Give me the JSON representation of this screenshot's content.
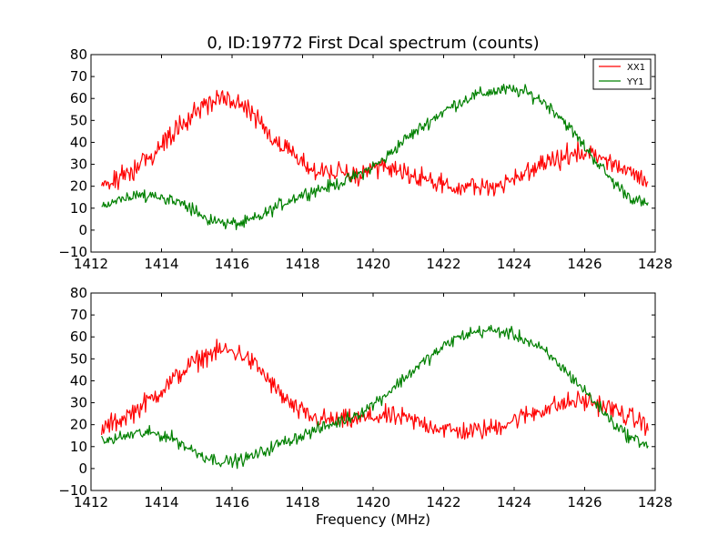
{
  "chart_data": [
    {
      "type": "line",
      "title": "0, ID:19772 First Dcal spectrum (counts)",
      "xlabel": "",
      "ylabel": "",
      "xlim": [
        1412,
        1428
      ],
      "ylim": [
        -10,
        80
      ],
      "xticks": [
        "1412",
        "1414",
        "1416",
        "1418",
        "1420",
        "1422",
        "1424",
        "1426",
        "1428"
      ],
      "yticks": [
        "−10",
        "0",
        "10",
        "20",
        "30",
        "40",
        "50",
        "60",
        "70",
        "80"
      ],
      "legend": {
        "placement": "top-right",
        "entries": [
          "XX1",
          "YY1"
        ]
      },
      "grid": false,
      "series": [
        {
          "name": "XX1",
          "color": "#ff0000",
          "noise": 3.5,
          "x": [
            1412.3,
            1412.8,
            1413.3,
            1413.8,
            1414.3,
            1414.8,
            1415.3,
            1415.8,
            1416.3,
            1416.8,
            1417.3,
            1417.8,
            1418.3,
            1418.8,
            1419.3,
            1419.8,
            1420.3,
            1420.8,
            1421.3,
            1421.8,
            1422.3,
            1422.8,
            1423.3,
            1423.8,
            1424.3,
            1424.8,
            1425.3,
            1425.8,
            1426.3,
            1426.8,
            1427.3,
            1427.8
          ],
          "y": [
            20,
            24,
            29,
            36,
            44,
            52,
            58,
            60,
            57,
            50,
            40,
            32,
            28,
            26,
            25,
            26,
            28,
            27,
            24,
            21,
            19,
            19,
            20,
            22,
            26,
            30,
            33,
            35,
            34,
            30,
            26,
            22
          ]
        },
        {
          "name": "YY1",
          "color": "#008000",
          "noise": 2.2,
          "x": [
            1412.3,
            1412.8,
            1413.3,
            1413.8,
            1414.3,
            1414.8,
            1415.3,
            1415.8,
            1416.3,
            1416.8,
            1417.3,
            1417.8,
            1418.3,
            1418.8,
            1419.3,
            1419.8,
            1420.3,
            1420.8,
            1421.3,
            1421.8,
            1422.3,
            1422.8,
            1423.3,
            1423.8,
            1424.3,
            1424.8,
            1425.3,
            1425.8,
            1426.3,
            1426.8,
            1427.3,
            1427.8
          ],
          "y": [
            11,
            14,
            16,
            16,
            14,
            10,
            5,
            3,
            3,
            6,
            11,
            15,
            18,
            20,
            23,
            27,
            32,
            40,
            46,
            52,
            57,
            61,
            63,
            64,
            63,
            59,
            52,
            42,
            32,
            22,
            15,
            11
          ]
        }
      ]
    },
    {
      "type": "line",
      "title": "",
      "xlabel": "Frequency (MHz)",
      "ylabel": "",
      "xlim": [
        1412,
        1428
      ],
      "ylim": [
        -10,
        80
      ],
      "xticks": [
        "1412",
        "1414",
        "1416",
        "1418",
        "1420",
        "1422",
        "1424",
        "1426",
        "1428"
      ],
      "yticks": [
        "−10",
        "0",
        "10",
        "20",
        "30",
        "40",
        "50",
        "60",
        "70",
        "80"
      ],
      "grid": false,
      "series": [
        {
          "name": "",
          "color": "#ff0000",
          "noise": 3.5,
          "x": [
            1412.3,
            1412.8,
            1413.3,
            1413.8,
            1414.3,
            1414.8,
            1415.3,
            1415.8,
            1416.3,
            1416.8,
            1417.3,
            1417.8,
            1418.3,
            1418.8,
            1419.3,
            1419.8,
            1420.3,
            1420.8,
            1421.3,
            1421.8,
            1422.3,
            1422.8,
            1423.3,
            1423.8,
            1424.3,
            1424.8,
            1425.3,
            1425.8,
            1426.3,
            1426.8,
            1427.3,
            1427.8
          ],
          "y": [
            18,
            22,
            27,
            33,
            40,
            47,
            52,
            54,
            52,
            45,
            35,
            27,
            23,
            22,
            22,
            23,
            24,
            23,
            21,
            19,
            17,
            17,
            18,
            21,
            24,
            27,
            29,
            31,
            30,
            27,
            23,
            20
          ]
        },
        {
          "name": "",
          "color": "#008000",
          "noise": 2.2,
          "x": [
            1412.3,
            1412.8,
            1413.3,
            1413.8,
            1414.3,
            1414.8,
            1415.3,
            1415.8,
            1416.3,
            1416.8,
            1417.3,
            1417.8,
            1418.3,
            1418.8,
            1419.3,
            1419.8,
            1420.3,
            1420.8,
            1421.3,
            1421.8,
            1422.3,
            1422.8,
            1423.3,
            1423.8,
            1424.3,
            1424.8,
            1425.3,
            1425.8,
            1426.3,
            1426.8,
            1427.3,
            1427.8
          ],
          "y": [
            12,
            14,
            16,
            16,
            14,
            9,
            5,
            3,
            4,
            7,
            11,
            14,
            17,
            20,
            23,
            27,
            33,
            40,
            47,
            53,
            59,
            62,
            63,
            62,
            59,
            54,
            47,
            39,
            30,
            21,
            14,
            11
          ]
        }
      ]
    }
  ]
}
